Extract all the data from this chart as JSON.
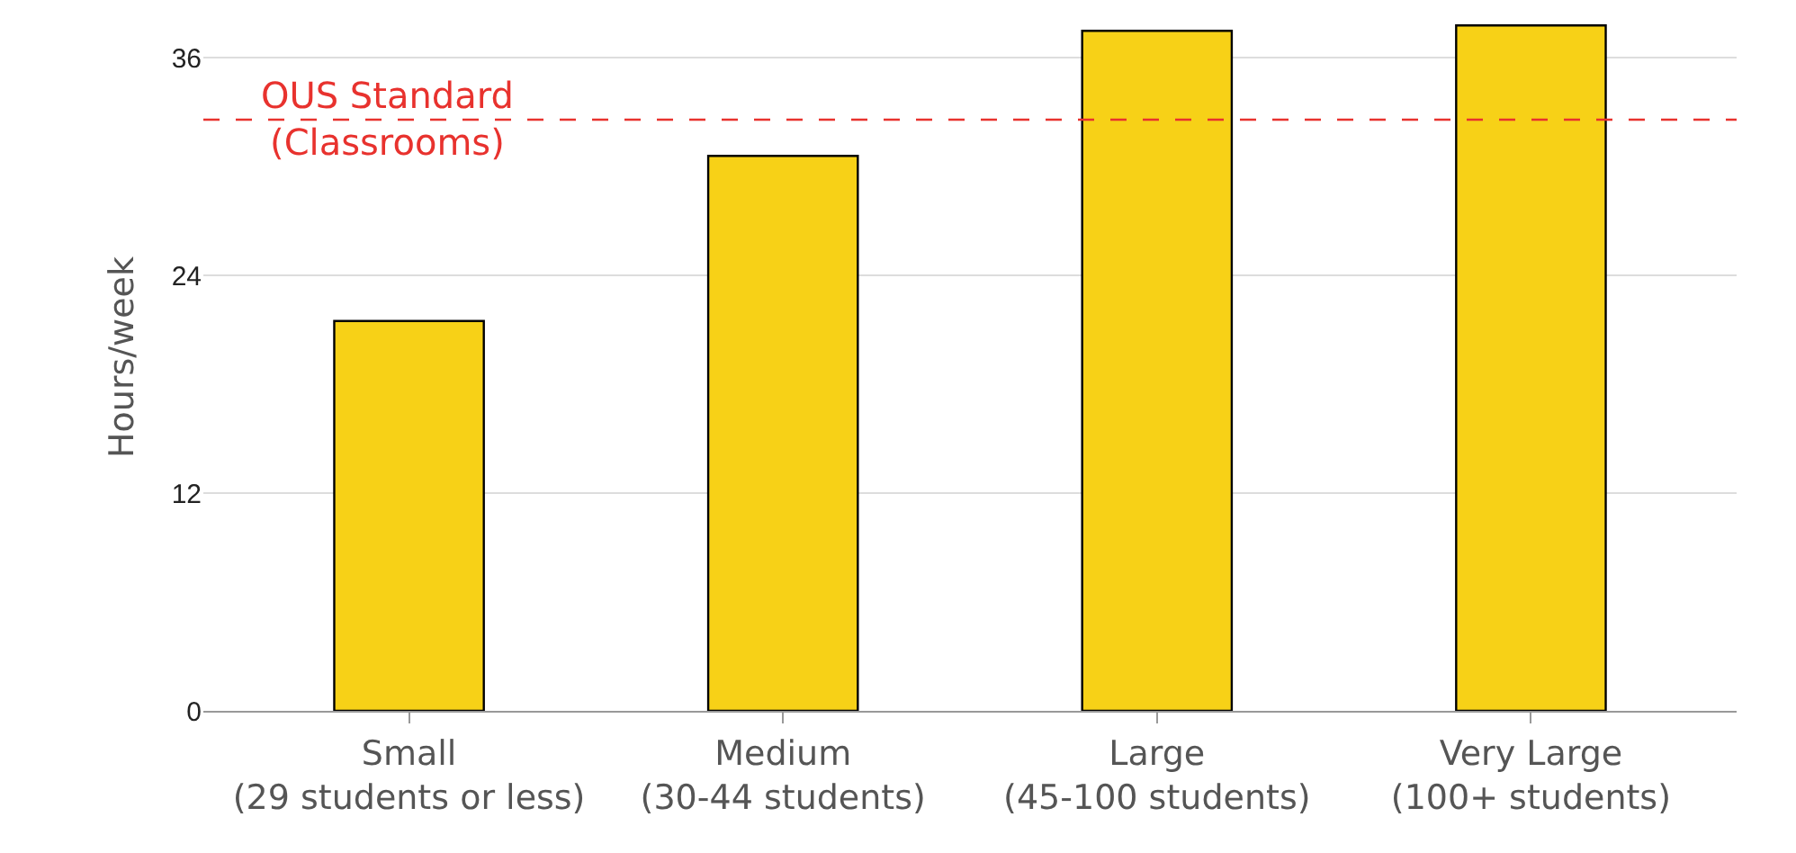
{
  "chart_data": {
    "type": "bar",
    "ylabel": "Hours/week",
    "categories": [
      "Small\n(29 students or less)",
      "Medium\n(30-44 students)",
      "Large\n(45-100 students)",
      "Very Large\n(100+ students)"
    ],
    "values": [
      21.5,
      30.6,
      37.5,
      37.8
    ],
    "color": "#f7d117",
    "ylim": [
      0,
      39
    ],
    "yticks": [
      0,
      12,
      24,
      36
    ],
    "grid": "y",
    "ref_lines": [
      {
        "axis": "y",
        "value": 32.6,
        "label": "OUS Standard\n(Classrooms)",
        "color": "#e8322e",
        "line_style": "dashed"
      }
    ]
  }
}
